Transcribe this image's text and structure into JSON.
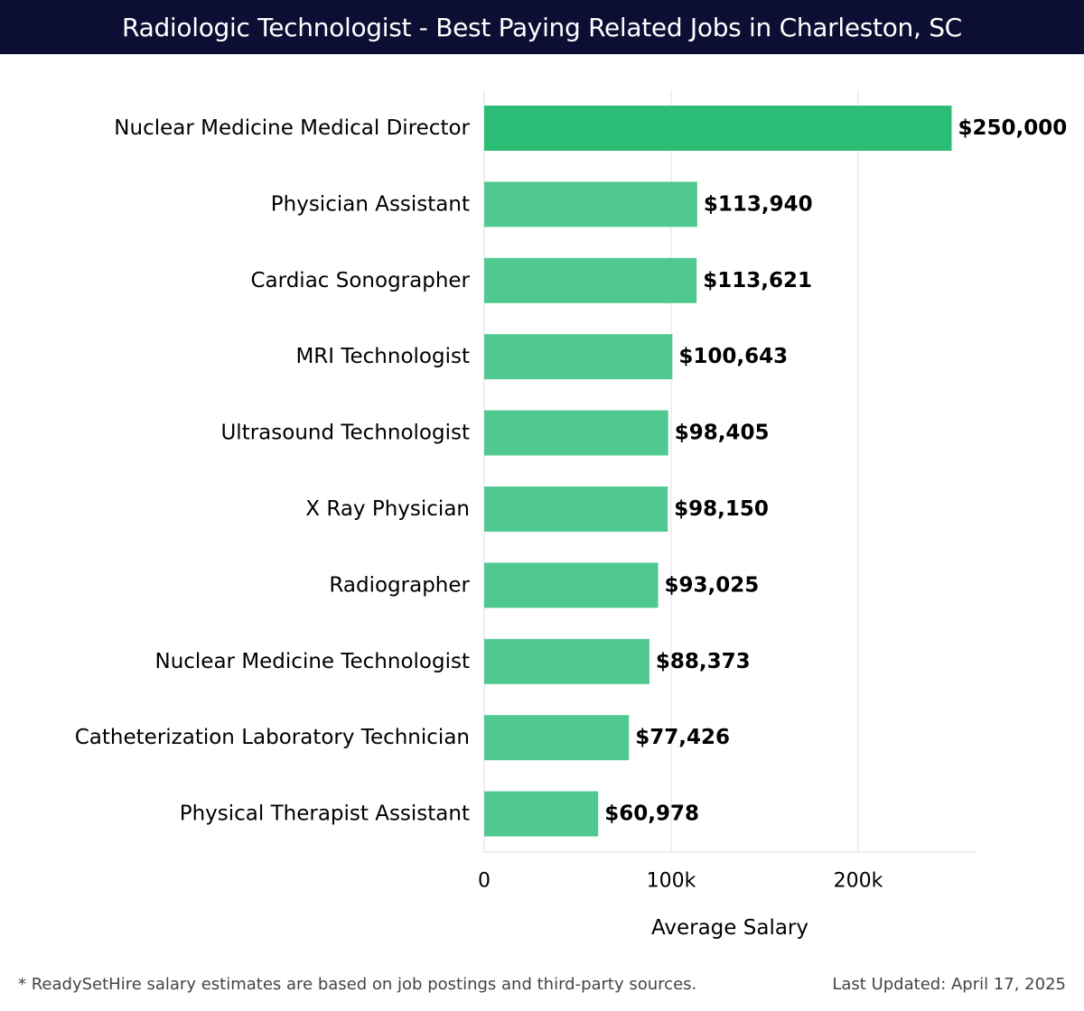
{
  "header": {
    "title": "Radiologic Technologist - Best Paying Related Jobs in Charleston, SC"
  },
  "chart_data": {
    "type": "bar",
    "orientation": "horizontal",
    "title": "Radiologic Technologist - Best Paying Related Jobs in Charleston, SC",
    "xlabel": "Average Salary",
    "ylabel": "",
    "xlim": [
      0,
      262500
    ],
    "xticks": [
      0,
      100000,
      200000
    ],
    "xtick_labels": [
      "0",
      "100k",
      "200k"
    ],
    "grid": "vertical",
    "categories": [
      "Nuclear Medicine Medical Director",
      "Physician Assistant",
      "Cardiac Sonographer",
      "MRI Technologist",
      "Ultrasound Technologist",
      "X Ray Physician",
      "Radiographer",
      "Nuclear Medicine Technologist",
      "Catheterization Laboratory Technician",
      "Physical Therapist Assistant"
    ],
    "values": [
      250000,
      113940,
      113621,
      100643,
      98405,
      98150,
      93025,
      88373,
      77426,
      60978
    ],
    "value_labels": [
      "$250,000",
      "$113,940",
      "$113,621",
      "$100,643",
      "$98,405",
      "$98,150",
      "$93,025",
      "$88,373",
      "$77,426",
      "$60,978"
    ],
    "colors": {
      "highlight_bar": "#2bbd76",
      "bar": "#50c990",
      "grid": "#e2e2e2",
      "axis": "#dddddd"
    }
  },
  "footer": {
    "note": "* ReadySetHire salary estimates are based on job postings and third-party sources.",
    "updated": "Last Updated: April 17, 2025"
  }
}
